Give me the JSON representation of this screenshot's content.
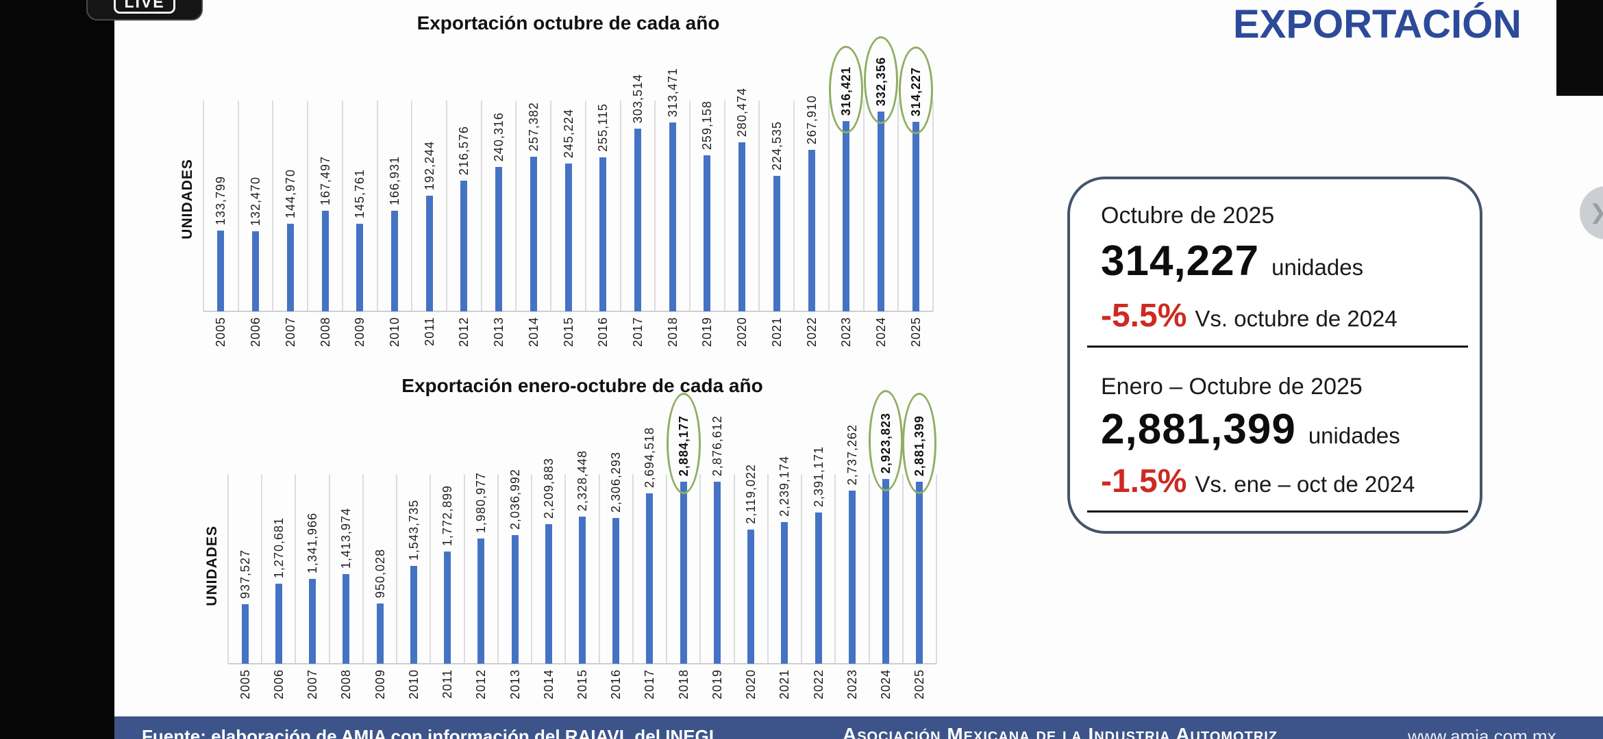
{
  "live_badge": {
    "label": "LIVE"
  },
  "page_title": "EXPORTACIÓN",
  "colors": {
    "bar_blue": "#4573C4",
    "title_blue": "#2C4A99",
    "highlight_green": "#8FAE63",
    "negative_red": "#CC2A22",
    "footer_navy": "#3C5489",
    "box_border": "#44546A"
  },
  "chart_data": [
    {
      "type": "bar",
      "title": "Exportación octubre de cada año",
      "ylabel": "UNIDADES",
      "xlabel": "",
      "ylim": [
        0,
        350000
      ],
      "grid": "vertical category separators only",
      "legend": "none",
      "value_label_style": "rotated 90°, thousands separators, above each bar",
      "x": [
        "2005",
        "2006",
        "2007",
        "2008",
        "2009",
        "2010",
        "2011",
        "2012",
        "2013",
        "2014",
        "2015",
        "2016",
        "2017",
        "2018",
        "2019",
        "2020",
        "2021",
        "2022",
        "2023",
        "2024",
        "2025"
      ],
      "values": [
        133799,
        132470,
        144970,
        167497,
        145761,
        166931,
        192244,
        216576,
        240316,
        257382,
        245224,
        255115,
        303514,
        313471,
        259158,
        280474,
        224535,
        267910,
        316421,
        332356,
        314227
      ],
      "highlight_years": [
        "2023",
        "2024",
        "2025"
      ],
      "highlight_marker": "green ellipse around label"
    },
    {
      "type": "bar",
      "title": "Exportación enero-octubre de cada año",
      "ylabel": "UNIDADES",
      "xlabel": "",
      "ylim": [
        0,
        3000000
      ],
      "grid": "vertical category separators only",
      "legend": "none",
      "value_label_style": "rotated 90°, thousands separators, above each bar",
      "x": [
        "2005",
        "2006",
        "2007",
        "2008",
        "2009",
        "2010",
        "2011",
        "2012",
        "2013",
        "2014",
        "2015",
        "2016",
        "2017",
        "2018",
        "2019",
        "2020",
        "2021",
        "2022",
        "2023",
        "2024",
        "2025"
      ],
      "values": [
        937527,
        1270681,
        1341966,
        1413974,
        950028,
        1543735,
        1772899,
        1980977,
        2036992,
        2209883,
        2328448,
        2306293,
        2694518,
        2884177,
        2876612,
        2119022,
        2239174,
        2391171,
        2737262,
        2923823,
        2881399
      ],
      "highlight_years": [
        "2018",
        "2024",
        "2025"
      ],
      "highlight_marker": "green ellipse around label"
    }
  ],
  "summary_panel": {
    "sections": [
      {
        "period": "Octubre de 2025",
        "value": "314,227",
        "unit": "unidades",
        "delta": "-5.5%",
        "comparison": "Vs. octubre de 2024"
      },
      {
        "period": "Enero – Octubre de 2025",
        "value": "2,881,399",
        "unit": "unidades",
        "delta": "-1.5%",
        "comparison": "Vs. ene – oct de 2024"
      }
    ]
  },
  "footer": {
    "source": "Fuente: elaboración de AMIA con información del RAIAVL del INEGI",
    "organization": "Asociación Mexicana de la Industria Automotriz",
    "website": "www.amia.com.mx"
  }
}
